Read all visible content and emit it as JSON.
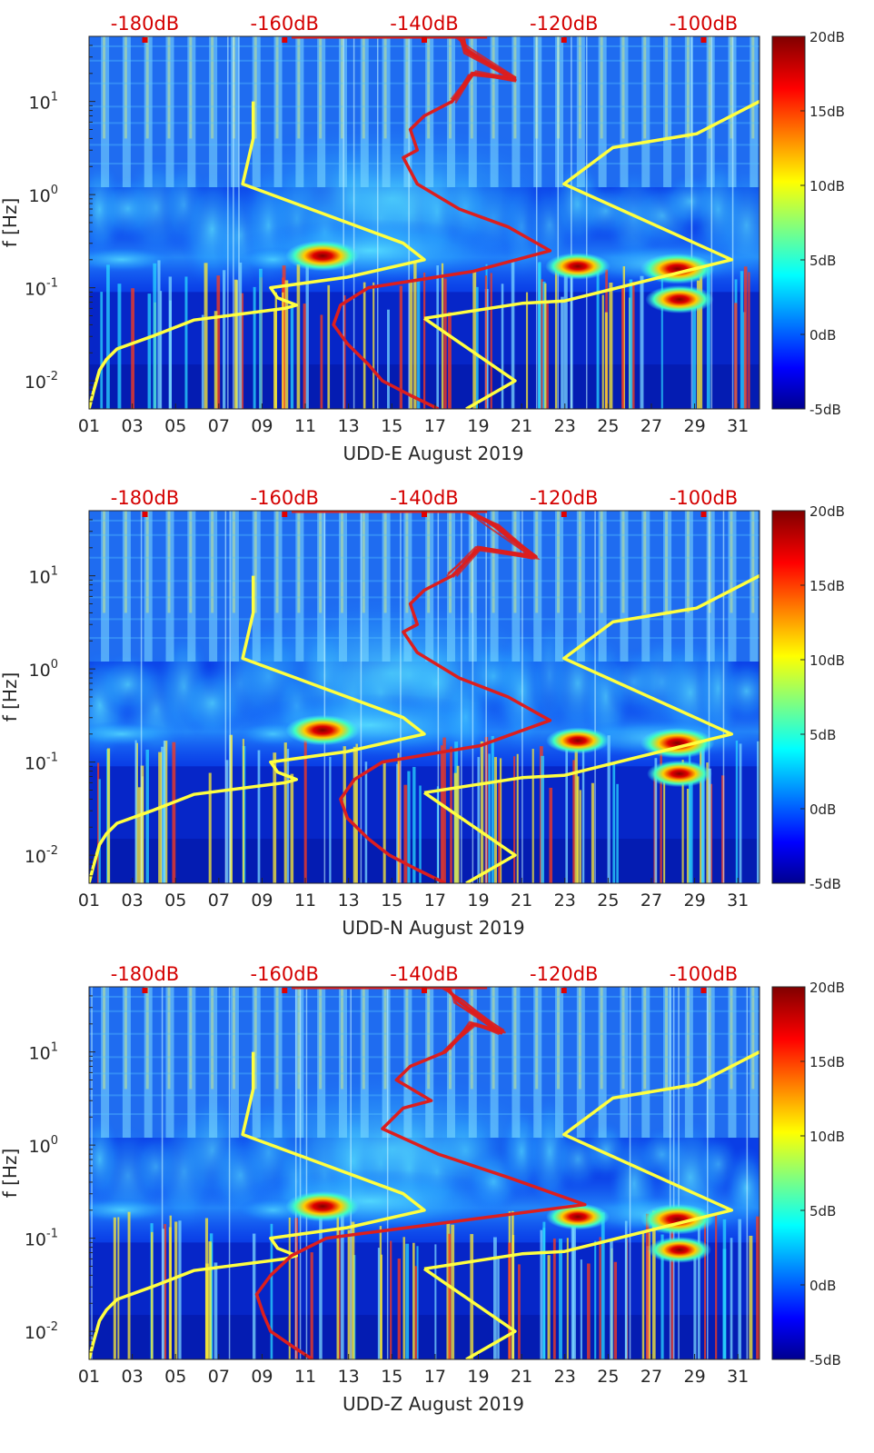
{
  "chart_data": [
    {
      "type": "heatmap",
      "title": "",
      "xlabel": "UDD-E August 2019",
      "ylabel": "f [Hz]",
      "x_ticks": [
        "01",
        "03",
        "05",
        "07",
        "09",
        "11",
        "13",
        "15",
        "17",
        "19",
        "21",
        "23",
        "25",
        "27",
        "29",
        "31"
      ],
      "x_range_day": [
        1,
        32
      ],
      "y_scale": "log",
      "y_range_hz": [
        0.005,
        50
      ],
      "y_ticks": [
        {
          "value": 0.01,
          "base": "10",
          "exp": "-2"
        },
        {
          "value": 0.1,
          "base": "10",
          "exp": "-1"
        },
        {
          "value": 1,
          "base": "10",
          "exp": "0"
        },
        {
          "value": 10,
          "base": "10",
          "exp": "1"
        }
      ],
      "top_axis_ticks": [
        "-180dB",
        "-160dB",
        "-140dB",
        "-120dB",
        "-100dB"
      ],
      "top_axis_range_db": [
        -188,
        -92
      ],
      "colorbar": {
        "ticks": [
          "20dB",
          "15dB",
          "10dB",
          "5dB",
          "0dB",
          "-5dB"
        ],
        "range_db": [
          -5,
          20
        ],
        "colormap": "jet"
      },
      "hotspots": [
        {
          "day": 11.8,
          "freq": 0.22,
          "level_db": 20
        },
        {
          "day": 28.2,
          "freq": 0.16,
          "level_db": 20
        },
        {
          "day": 28.3,
          "freq": 0.075,
          "level_db": 16
        },
        {
          "day": 23.6,
          "freq": 0.17,
          "level_db": 14
        }
      ],
      "series": [
        {
          "name": "",
          "color": "#ffff40",
          "x_unit": "dB",
          "points": [
            [
              -188,
              0.005
            ],
            [
              -187.3,
              0.008
            ],
            [
              -186.5,
              0.013
            ],
            [
              -185.5,
              0.017
            ],
            [
              -184,
              0.022
            ],
            [
              -179,
              0.03
            ],
            [
              -173,
              0.045
            ],
            [
              -160,
              0.06
            ],
            [
              -158.3,
              0.065
            ],
            [
              -161,
              0.078
            ],
            [
              -162,
              0.1
            ],
            [
              -151,
              0.13
            ],
            [
              -140,
              0.2
            ],
            [
              -143,
              0.3
            ],
            [
              -166,
              1.3
            ],
            [
              -164.5,
              4
            ],
            [
              -164.5,
              10
            ]
          ]
        },
        {
          "name": "",
          "color": "#ffff40",
          "x_unit": "dB",
          "points": [
            [
              -140,
              0.047
            ],
            [
              -126,
              0.068
            ],
            [
              -120,
              0.072
            ],
            [
              -96,
              0.2
            ],
            [
              -120,
              1.3
            ],
            [
              -113,
              3.2
            ],
            [
              -101,
              4.5
            ],
            [
              -92,
              10
            ]
          ]
        },
        {
          "name": "",
          "color": "#ffff40",
          "x_unit": "dB",
          "points": [
            [
              -140,
              0.047
            ],
            [
              -127,
              0.01
            ],
            [
              -134,
              0.005
            ]
          ]
        },
        {
          "name": "",
          "color": "#dc1e1e",
          "x_unit": "dB",
          "points": [
            [
              -138,
              0.005
            ],
            [
              -142,
              0.007
            ],
            [
              -146,
              0.01
            ],
            [
              -148,
              0.015
            ],
            [
              -151,
              0.025
            ],
            [
              -153,
              0.04
            ],
            [
              -152,
              0.065
            ],
            [
              -148,
              0.1
            ],
            [
              -133,
              0.15
            ],
            [
              -122,
              0.25
            ],
            [
              -128,
              0.45
            ],
            [
              -135,
              0.7
            ],
            [
              -141,
              1.3
            ],
            [
              -143,
              2.5
            ],
            [
              -141,
              3
            ],
            [
              -142,
              5
            ],
            [
              -140,
              7
            ],
            [
              -136,
              10
            ],
            [
              -133,
              20
            ],
            [
              -127,
              17
            ],
            [
              -134,
              35
            ],
            [
              -135,
              50
            ]
          ]
        }
      ]
    },
    {
      "type": "heatmap",
      "title": "",
      "xlabel": "UDD-N August 2019",
      "ylabel": "f [Hz]",
      "x_ticks": [
        "01",
        "03",
        "05",
        "07",
        "09",
        "11",
        "13",
        "15",
        "17",
        "19",
        "21",
        "23",
        "25",
        "27",
        "29",
        "31"
      ],
      "x_range_day": [
        1,
        32
      ],
      "y_scale": "log",
      "y_range_hz": [
        0.005,
        50
      ],
      "y_ticks": [
        {
          "value": 0.01,
          "base": "10",
          "exp": "-2"
        },
        {
          "value": 0.1,
          "base": "10",
          "exp": "-1"
        },
        {
          "value": 1,
          "base": "10",
          "exp": "0"
        },
        {
          "value": 10,
          "base": "10",
          "exp": "1"
        }
      ],
      "top_axis_ticks": [
        "-180dB",
        "-160dB",
        "-140dB",
        "-120dB",
        "-100dB"
      ],
      "top_axis_range_db": [
        -188,
        -92
      ],
      "colorbar": {
        "ticks": [
          "20dB",
          "15dB",
          "10dB",
          "5dB",
          "0dB",
          "-5dB"
        ],
        "range_db": [
          -5,
          20
        ],
        "colormap": "jet"
      },
      "hotspots": [
        {
          "day": 11.8,
          "freq": 0.22,
          "level_db": 20
        },
        {
          "day": 28.2,
          "freq": 0.16,
          "level_db": 20
        },
        {
          "day": 28.3,
          "freq": 0.075,
          "level_db": 14
        },
        {
          "day": 23.6,
          "freq": 0.17,
          "level_db": 13
        }
      ],
      "series": [
        {
          "name": "",
          "color": "#ffff40",
          "x_unit": "dB",
          "points": [
            [
              -188,
              0.005
            ],
            [
              -187.3,
              0.008
            ],
            [
              -186.5,
              0.013
            ],
            [
              -185.5,
              0.017
            ],
            [
              -184,
              0.022
            ],
            [
              -179,
              0.03
            ],
            [
              -173,
              0.045
            ],
            [
              -160,
              0.06
            ],
            [
              -158.3,
              0.065
            ],
            [
              -161,
              0.078
            ],
            [
              -162,
              0.1
            ],
            [
              -151,
              0.13
            ],
            [
              -140,
              0.2
            ],
            [
              -143,
              0.3
            ],
            [
              -166,
              1.3
            ],
            [
              -164.5,
              4
            ],
            [
              -164.5,
              10
            ]
          ]
        },
        {
          "name": "",
          "color": "#ffff40",
          "x_unit": "dB",
          "points": [
            [
              -140,
              0.047
            ],
            [
              -126,
              0.068
            ],
            [
              -120,
              0.072
            ],
            [
              -96,
              0.2
            ],
            [
              -120,
              1.3
            ],
            [
              -113,
              3.2
            ],
            [
              -101,
              4.5
            ],
            [
              -92,
              10
            ]
          ]
        },
        {
          "name": "",
          "color": "#ffff40",
          "x_unit": "dB",
          "points": [
            [
              -140,
              0.047
            ],
            [
              -127,
              0.01
            ],
            [
              -134,
              0.005
            ]
          ]
        },
        {
          "name": "",
          "color": "#dc1e1e",
          "x_unit": "dB",
          "points": [
            [
              -137,
              0.005
            ],
            [
              -141,
              0.007
            ],
            [
              -145,
              0.01
            ],
            [
              -148,
              0.015
            ],
            [
              -151,
              0.025
            ],
            [
              -152,
              0.04
            ],
            [
              -150,
              0.065
            ],
            [
              -146,
              0.1
            ],
            [
              -132,
              0.15
            ],
            [
              -122,
              0.28
            ],
            [
              -128,
              0.5
            ],
            [
              -135,
              0.8
            ],
            [
              -141,
              1.5
            ],
            [
              -143,
              2.5
            ],
            [
              -141,
              3
            ],
            [
              -142,
              5
            ],
            [
              -140,
              7
            ],
            [
              -136,
              10
            ],
            [
              -132,
              20
            ],
            [
              -124,
              16
            ],
            [
              -130,
              35
            ],
            [
              -134,
              50
            ]
          ]
        }
      ]
    },
    {
      "type": "heatmap",
      "title": "",
      "xlabel": "UDD-Z August 2019",
      "ylabel": "f [Hz]",
      "x_ticks": [
        "01",
        "03",
        "05",
        "07",
        "09",
        "11",
        "13",
        "15",
        "17",
        "19",
        "21",
        "23",
        "25",
        "27",
        "29",
        "31"
      ],
      "x_range_day": [
        1,
        32
      ],
      "y_scale": "log",
      "y_range_hz": [
        0.005,
        50
      ],
      "y_ticks": [
        {
          "value": 0.01,
          "base": "10",
          "exp": "-2"
        },
        {
          "value": 0.1,
          "base": "10",
          "exp": "-1"
        },
        {
          "value": 1,
          "base": "10",
          "exp": "0"
        },
        {
          "value": 10,
          "base": "10",
          "exp": "1"
        }
      ],
      "top_axis_ticks": [
        "-180dB",
        "-160dB",
        "-140dB",
        "-120dB",
        "-100dB"
      ],
      "top_axis_range_db": [
        -188,
        -92
      ],
      "colorbar": {
        "ticks": [
          "20dB",
          "15dB",
          "10dB",
          "5dB",
          "0dB",
          "-5dB"
        ],
        "range_db": [
          -5,
          20
        ],
        "colormap": "jet"
      },
      "hotspots": [
        {
          "day": 11.8,
          "freq": 0.22,
          "level_db": 20
        },
        {
          "day": 28.2,
          "freq": 0.16,
          "level_db": 20
        },
        {
          "day": 28.3,
          "freq": 0.075,
          "level_db": 13
        },
        {
          "day": 23.6,
          "freq": 0.17,
          "level_db": 13
        }
      ],
      "series": [
        {
          "name": "",
          "color": "#ffff40",
          "x_unit": "dB",
          "points": [
            [
              -188,
              0.005
            ],
            [
              -187.3,
              0.008
            ],
            [
              -186.5,
              0.013
            ],
            [
              -185.5,
              0.017
            ],
            [
              -184,
              0.022
            ],
            [
              -179,
              0.03
            ],
            [
              -173,
              0.045
            ],
            [
              -160,
              0.06
            ],
            [
              -158.3,
              0.065
            ],
            [
              -161,
              0.078
            ],
            [
              -162,
              0.1
            ],
            [
              -151,
              0.13
            ],
            [
              -140,
              0.2
            ],
            [
              -143,
              0.3
            ],
            [
              -166,
              1.3
            ],
            [
              -164.5,
              4
            ],
            [
              -164.5,
              10
            ]
          ]
        },
        {
          "name": "",
          "color": "#ffff40",
          "x_unit": "dB",
          "points": [
            [
              -140,
              0.047
            ],
            [
              -126,
              0.068
            ],
            [
              -120,
              0.072
            ],
            [
              -96,
              0.2
            ],
            [
              -120,
              1.3
            ],
            [
              -113,
              3.2
            ],
            [
              -101,
              4.5
            ],
            [
              -92,
              10
            ]
          ]
        },
        {
          "name": "",
          "color": "#ffff40",
          "x_unit": "dB",
          "points": [
            [
              -140,
              0.047
            ],
            [
              -127,
              0.01
            ],
            [
              -134,
              0.005
            ]
          ]
        },
        {
          "name": "",
          "color": "#dc1e1e",
          "x_unit": "dB",
          "points": [
            [
              -156,
              0.005
            ],
            [
              -159,
              0.007
            ],
            [
              -162,
              0.01
            ],
            [
              -163,
              0.015
            ],
            [
              -164,
              0.025
            ],
            [
              -162,
              0.04
            ],
            [
              -159,
              0.065
            ],
            [
              -154,
              0.1
            ],
            [
              -136,
              0.15
            ],
            [
              -117,
              0.23
            ],
            [
              -128,
              0.45
            ],
            [
              -138,
              0.8
            ],
            [
              -146,
              1.5
            ],
            [
              -143,
              2.5
            ],
            [
              -139,
              3
            ],
            [
              -144,
              5
            ],
            [
              -142,
              7
            ],
            [
              -137,
              10
            ],
            [
              -133,
              20
            ],
            [
              -129,
              16
            ],
            [
              -135,
              35
            ],
            [
              -137,
              50
            ]
          ]
        }
      ]
    }
  ]
}
